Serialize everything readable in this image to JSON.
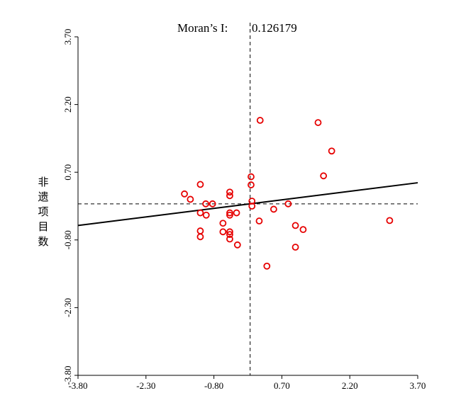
{
  "chart_data": {
    "type": "scatter",
    "title_prefix": "Moran’s I:",
    "title_value": "0.126179",
    "ylabel": "非遗项目数",
    "xlabel": "",
    "xlim": [
      -3.8,
      3.7
    ],
    "ylim": [
      -3.8,
      3.7
    ],
    "x_ticks": [
      "-3.80",
      "-2.30",
      "-0.80",
      "0.70",
      "2.20",
      "3.70"
    ],
    "y_ticks": [
      "-3.80",
      "-2.30",
      "-0.80",
      "0.70",
      "2.20",
      "3.70"
    ],
    "point_color": "#e60000",
    "reference_lines": {
      "x": 0.0,
      "y": 0.0
    },
    "regression_line": {
      "slope": 0.126179,
      "intercept": 0.0
    },
    "points": [
      [
        0.22,
        1.85
      ],
      [
        1.5,
        1.8
      ],
      [
        1.8,
        1.17
      ],
      [
        1.62,
        0.62
      ],
      [
        0.02,
        0.6
      ],
      [
        0.02,
        0.42
      ],
      [
        -1.1,
        0.43
      ],
      [
        -0.45,
        0.26
      ],
      [
        -0.45,
        0.18
      ],
      [
        -1.45,
        0.22
      ],
      [
        -1.32,
        0.1
      ],
      [
        -0.98,
        0.0
      ],
      [
        -0.83,
        0.0
      ],
      [
        0.04,
        0.06
      ],
      [
        0.04,
        -0.05
      ],
      [
        0.52,
        -0.12
      ],
      [
        0.84,
        0.0
      ],
      [
        -1.1,
        -0.2
      ],
      [
        -0.97,
        -0.25
      ],
      [
        -0.45,
        -0.2
      ],
      [
        -0.45,
        -0.25
      ],
      [
        -0.3,
        -0.2
      ],
      [
        -0.6,
        -0.43
      ],
      [
        0.2,
        -0.38
      ],
      [
        1.0,
        -0.48
      ],
      [
        1.17,
        -0.57
      ],
      [
        3.08,
        -0.37
      ],
      [
        -1.1,
        -0.6
      ],
      [
        -1.1,
        -0.73
      ],
      [
        -0.6,
        -0.62
      ],
      [
        -0.45,
        -0.62
      ],
      [
        -0.45,
        -0.68
      ],
      [
        -0.45,
        -0.78
      ],
      [
        -0.28,
        -0.91
      ],
      [
        1.0,
        -0.96
      ],
      [
        0.37,
        -1.38
      ]
    ]
  }
}
